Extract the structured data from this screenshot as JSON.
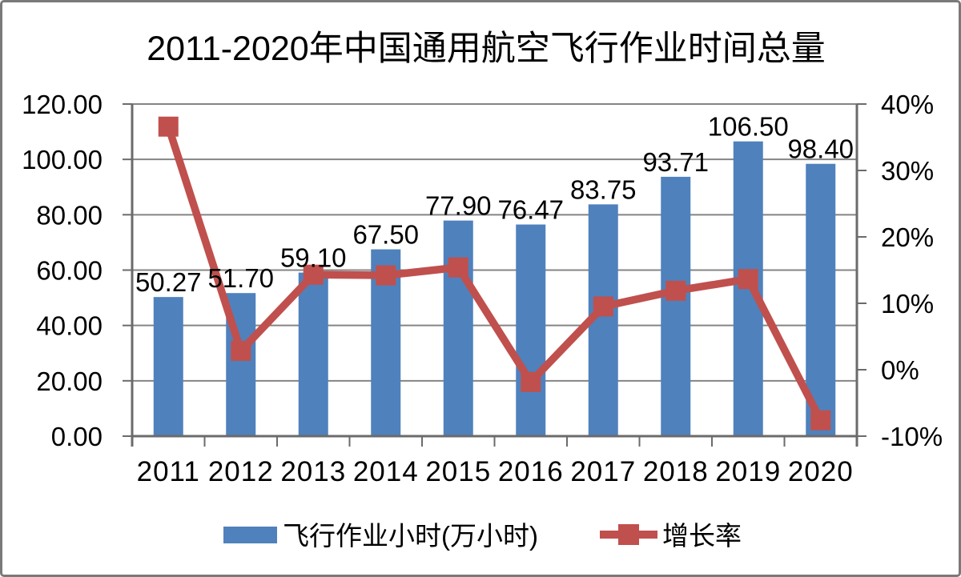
{
  "chart_data": {
    "type": "combo-bar-line",
    "title": "2011-2020年中国通用航空飞行作业时间总量",
    "categories": [
      "2011",
      "2012",
      "2013",
      "2014",
      "2015",
      "2016",
      "2017",
      "2018",
      "2019",
      "2020"
    ],
    "series": [
      {
        "name": "飞行作业小时(万小时)",
        "type": "bar",
        "axis": "left",
        "color": "#4F81BD",
        "values": [
          50.27,
          51.7,
          59.1,
          67.5,
          77.9,
          76.47,
          83.75,
          93.71,
          106.5,
          98.4
        ],
        "labels": [
          "50.27",
          "51.70",
          "59.10",
          "67.50",
          "77.90",
          "76.47",
          "83.75",
          "93.71",
          "106.50",
          "98.40"
        ]
      },
      {
        "name": "增长率",
        "type": "line",
        "axis": "right",
        "color": "#C0504D",
        "marker": "square",
        "values_pct": [
          36.6,
          2.84,
          14.31,
          14.21,
          15.41,
          -1.84,
          9.52,
          11.89,
          13.65,
          -7.61
        ]
      }
    ],
    "left_axis": {
      "min": 0,
      "max": 120,
      "step": 20,
      "tick_labels": [
        "0.00",
        "20.00",
        "40.00",
        "60.00",
        "80.00",
        "100.00",
        "120.00"
      ]
    },
    "right_axis": {
      "min": -10,
      "max": 40,
      "step": 10,
      "tick_labels": [
        "-10%",
        "0%",
        "10%",
        "20%",
        "30%",
        "40%"
      ]
    },
    "gridlines": "horizontal",
    "legend_position": "bottom",
    "colors": {
      "grid": "#848484",
      "axis": "#6b6b6b",
      "text": "#000000",
      "background": "#ffffff",
      "frame_border": "#7a7a7a"
    }
  }
}
